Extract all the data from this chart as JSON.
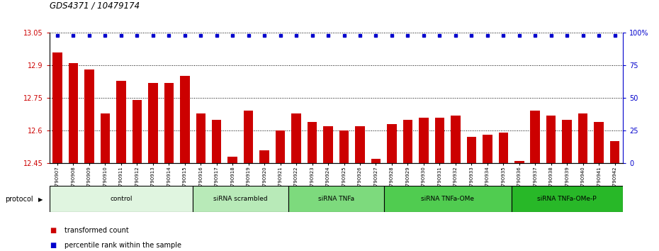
{
  "title": "GDS4371 / 10479174",
  "samples": [
    "GSM790907",
    "GSM790908",
    "GSM790909",
    "GSM790910",
    "GSM790911",
    "GSM790912",
    "GSM790913",
    "GSM790914",
    "GSM790915",
    "GSM790916",
    "GSM790917",
    "GSM790918",
    "GSM790919",
    "GSM790920",
    "GSM790921",
    "GSM790922",
    "GSM790923",
    "GSM790924",
    "GSM790925",
    "GSM790926",
    "GSM790927",
    "GSM790928",
    "GSM790929",
    "GSM790930",
    "GSM790931",
    "GSM790932",
    "GSM790933",
    "GSM790934",
    "GSM790935",
    "GSM790936",
    "GSM790937",
    "GSM790938",
    "GSM790939",
    "GSM790940",
    "GSM790941",
    "GSM790942"
  ],
  "bar_values": [
    12.96,
    12.91,
    12.88,
    12.68,
    12.83,
    12.74,
    12.82,
    12.82,
    12.85,
    12.68,
    12.65,
    12.48,
    12.69,
    12.51,
    12.6,
    12.68,
    12.64,
    12.62,
    12.6,
    12.62,
    12.47,
    12.63,
    12.65,
    12.66,
    12.66,
    12.67,
    12.57,
    12.58,
    12.59,
    12.46,
    12.69,
    12.67,
    12.65,
    12.68,
    12.64,
    12.55
  ],
  "groups": [
    {
      "label": "control",
      "start": 0,
      "end": 9,
      "color": "#e0f5e0"
    },
    {
      "label": "siRNA scrambled",
      "start": 9,
      "end": 15,
      "color": "#b8eab8"
    },
    {
      "label": "siRNA TNFa",
      "start": 15,
      "end": 21,
      "color": "#7dda7d"
    },
    {
      "label": "siRNA TNFa-OMe",
      "start": 21,
      "end": 29,
      "color": "#50cc50"
    },
    {
      "label": "siRNA TNFa-OMe-P",
      "start": 29,
      "end": 36,
      "color": "#28b828"
    }
  ],
  "ymin": 12.45,
  "ymax": 13.05,
  "yticks": [
    12.45,
    12.6,
    12.75,
    12.9,
    13.05
  ],
  "ytick_labels": [
    "12.45",
    "12.6",
    "12.75",
    "12.9",
    "13.05"
  ],
  "right_yticks": [
    0,
    25,
    50,
    75,
    100
  ],
  "right_ytick_labels": [
    "0",
    "25",
    "50",
    "75",
    "100%"
  ],
  "bar_color": "#cc0000",
  "percentile_color": "#0000cc",
  "grid_color": "#000000",
  "protocol_label": "protocol",
  "legend_items": [
    {
      "label": "transformed count",
      "color": "#cc0000"
    },
    {
      "label": "percentile rank within the sample",
      "color": "#0000cc"
    }
  ]
}
